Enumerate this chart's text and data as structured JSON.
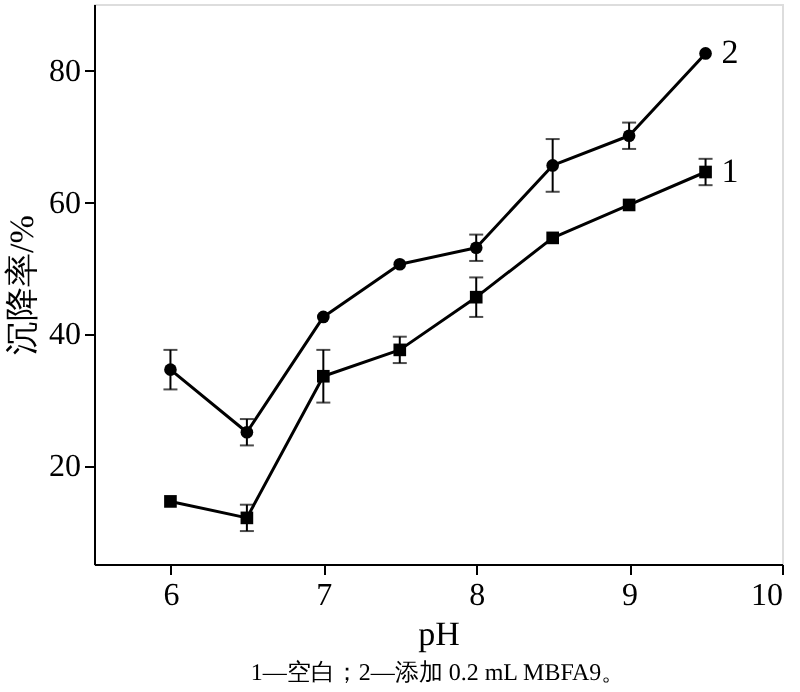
{
  "chart_data": {
    "type": "line",
    "xlabel": "pH",
    "ylabel": "沉降率/%",
    "annotations": [
      "1—空白；2—添加 0.2 mL MBFA9。"
    ],
    "x": [
      6,
      6.5,
      7,
      7.5,
      8,
      8.5,
      9,
      9.5
    ],
    "series": [
      {
        "name": "2",
        "color": "#000000",
        "marker": "circle",
        "values": [
          34.5,
          25,
          42.5,
          50.5,
          53,
          65.5,
          70,
          82.5
        ],
        "errors": [
          3,
          2,
          null,
          null,
          2,
          4,
          2,
          null
        ]
      },
      {
        "name": "1",
        "color": "#000000",
        "marker": "square",
        "values": [
          14.5,
          12,
          33.5,
          37.5,
          45.5,
          54.5,
          59.5,
          64.5
        ],
        "errors": [
          null,
          2,
          4,
          2,
          3,
          null,
          null,
          2
        ]
      }
    ],
    "xlim": [
      5.5,
      10
    ],
    "xticks": [
      6,
      7,
      8,
      9,
      10
    ],
    "ylim": [
      5,
      90
    ],
    "yticks": [
      20,
      40,
      60,
      80
    ],
    "grid": false,
    "legend": false,
    "line_style": "solid"
  }
}
